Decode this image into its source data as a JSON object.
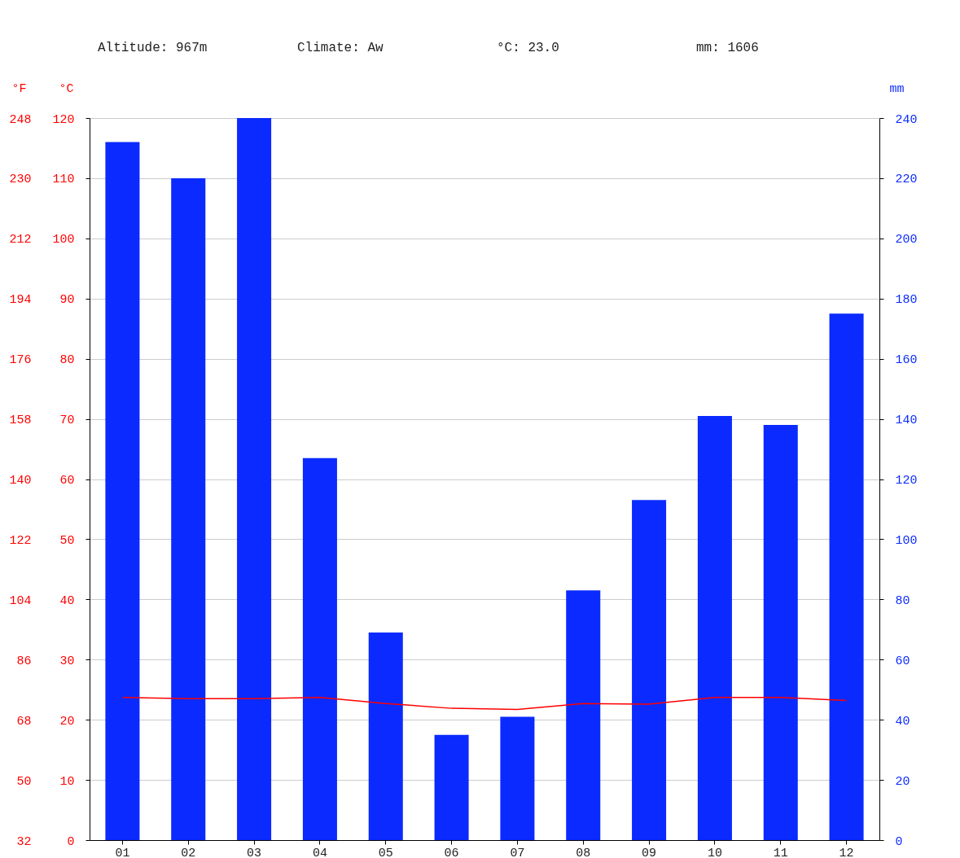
{
  "chart_data": {
    "type": "bar",
    "categories": [
      "01",
      "02",
      "03",
      "04",
      "05",
      "06",
      "07",
      "08",
      "09",
      "10",
      "11",
      "12"
    ],
    "series": [
      {
        "axis": "y2",
        "color": "#0a2aff",
        "values": [
          232,
          220,
          240,
          127,
          69,
          35,
          41,
          83,
          113,
          141,
          138,
          175
        ]
      },
      {
        "type": "line",
        "color": "#ff0000",
        "values": [
          23.7,
          23.5,
          23.5,
          23.7,
          22.7,
          21.9,
          21.7,
          22.7,
          22.6,
          23.7,
          23.7,
          23.2
        ]
      }
    ],
    "ylabel": "°C",
    "y2label": "mm",
    "y3label": "°F",
    "ylim": [
      0,
      120
    ],
    "yticks": [
      0,
      10,
      20,
      30,
      40,
      50,
      60,
      70,
      80,
      90,
      100,
      110,
      120
    ],
    "y2lim": [
      0,
      240
    ],
    "y2ticks": [
      0,
      20,
      40,
      60,
      80,
      100,
      120,
      140,
      160,
      180,
      200,
      220,
      240
    ],
    "y3lim": [
      32,
      248
    ],
    "y3ticks": [
      32,
      50,
      68,
      86,
      104,
      122,
      140,
      158,
      176,
      194,
      212,
      230,
      248
    ],
    "grid": "y",
    "annotations": [
      "Altitude: 967m",
      "Climate: Aw",
      "°C: 23.0",
      "mm: 1606"
    ]
  }
}
